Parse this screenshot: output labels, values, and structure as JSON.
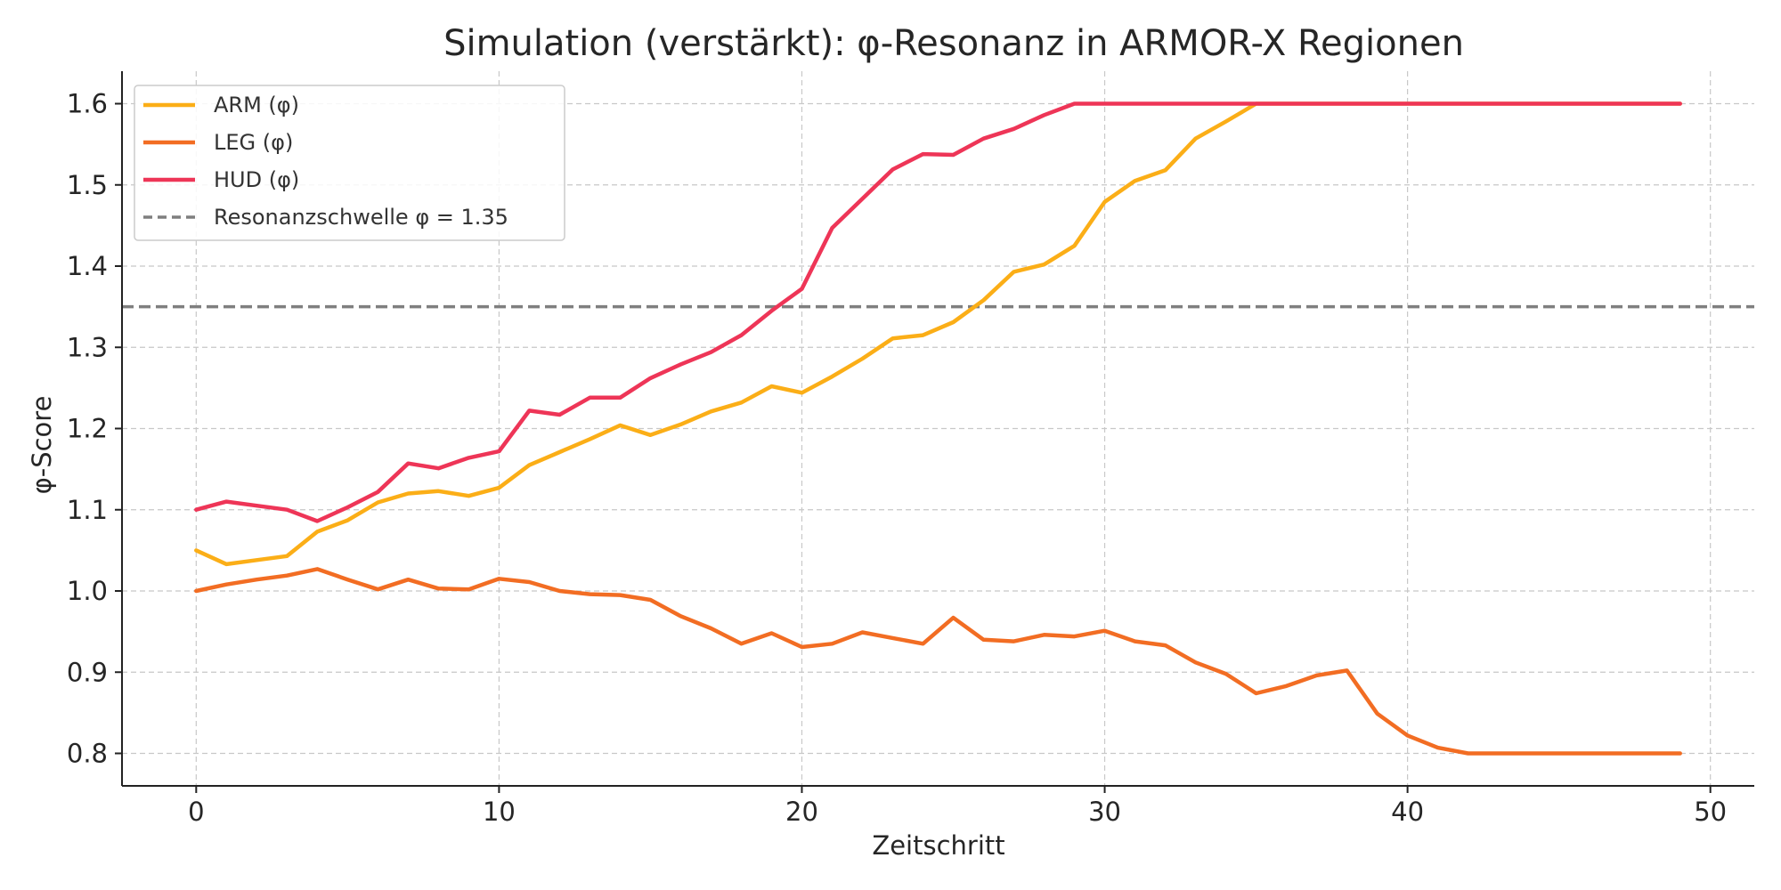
{
  "chart_data": {
    "type": "line",
    "title": "Simulation (verstärkt): φ-Resonanz in ARMOR-X Regionen",
    "xlabel": "Zeitschritt",
    "ylabel": "φ-Score",
    "xlim": [
      -2.45,
      51.45
    ],
    "ylim": [
      0.76,
      1.64
    ],
    "xticks": [
      0,
      10,
      20,
      30,
      40,
      50
    ],
    "yticks": [
      0.8,
      0.9,
      1.0,
      1.1,
      1.2,
      1.3,
      1.4,
      1.5,
      1.6
    ],
    "grid": true,
    "legend_position": "top-left",
    "x": [
      0,
      1,
      2,
      3,
      4,
      5,
      6,
      7,
      8,
      9,
      10,
      11,
      12,
      13,
      14,
      15,
      16,
      17,
      18,
      19,
      20,
      21,
      22,
      23,
      24,
      25,
      26,
      27,
      28,
      29,
      30,
      31,
      32,
      33,
      34,
      35,
      36,
      37,
      38,
      39,
      40,
      41,
      42,
      43,
      44,
      45,
      46,
      47,
      48,
      49
    ],
    "series": [
      {
        "name": "ARM (φ)",
        "color": "#FBAE17",
        "values": [
          1.05,
          1.033,
          1.038,
          1.043,
          1.073,
          1.087,
          1.109,
          1.12,
          1.123,
          1.117,
          1.127,
          1.155,
          1.171,
          1.187,
          1.204,
          1.192,
          1.205,
          1.221,
          1.232,
          1.252,
          1.244,
          1.264,
          1.286,
          1.311,
          1.315,
          1.331,
          1.358,
          1.393,
          1.402,
          1.425,
          1.479,
          1.505,
          1.518,
          1.557,
          1.578,
          1.6,
          1.6,
          1.6,
          1.6,
          1.6,
          1.6,
          1.6,
          1.6,
          1.6,
          1.6,
          1.6,
          1.6,
          1.6,
          1.6,
          1.6
        ]
      },
      {
        "name": "LEG (φ)",
        "color": "#F26D23",
        "values": [
          1.0,
          1.008,
          1.014,
          1.019,
          1.027,
          1.014,
          1.002,
          1.014,
          1.003,
          1.002,
          1.015,
          1.011,
          1.0,
          0.996,
          0.995,
          0.989,
          0.969,
          0.954,
          0.935,
          0.948,
          0.931,
          0.935,
          0.949,
          0.942,
          0.935,
          0.967,
          0.94,
          0.938,
          0.946,
          0.944,
          0.951,
          0.938,
          0.933,
          0.912,
          0.898,
          0.874,
          0.883,
          0.896,
          0.902,
          0.849,
          0.822,
          0.807,
          0.8,
          0.8,
          0.8,
          0.8,
          0.8,
          0.8,
          0.8,
          0.8
        ]
      },
      {
        "name": "HUD (φ)",
        "color": "#EE3557",
        "values": [
          1.1,
          1.11,
          1.105,
          1.1,
          1.086,
          1.103,
          1.122,
          1.157,
          1.151,
          1.164,
          1.172,
          1.222,
          1.217,
          1.238,
          1.238,
          1.262,
          1.279,
          1.294,
          1.315,
          1.345,
          1.372,
          1.447,
          1.483,
          1.519,
          1.538,
          1.537,
          1.557,
          1.569,
          1.586,
          1.6,
          1.6,
          1.6,
          1.6,
          1.6,
          1.6,
          1.6,
          1.6,
          1.6,
          1.6,
          1.6,
          1.6,
          1.6,
          1.6,
          1.6,
          1.6,
          1.6,
          1.6,
          1.6,
          1.6,
          1.6
        ]
      }
    ],
    "threshold": {
      "name": "Resonanzschwelle φ = 1.35",
      "value": 1.35,
      "color": "#7F7F7F",
      "style": "dashed"
    }
  }
}
